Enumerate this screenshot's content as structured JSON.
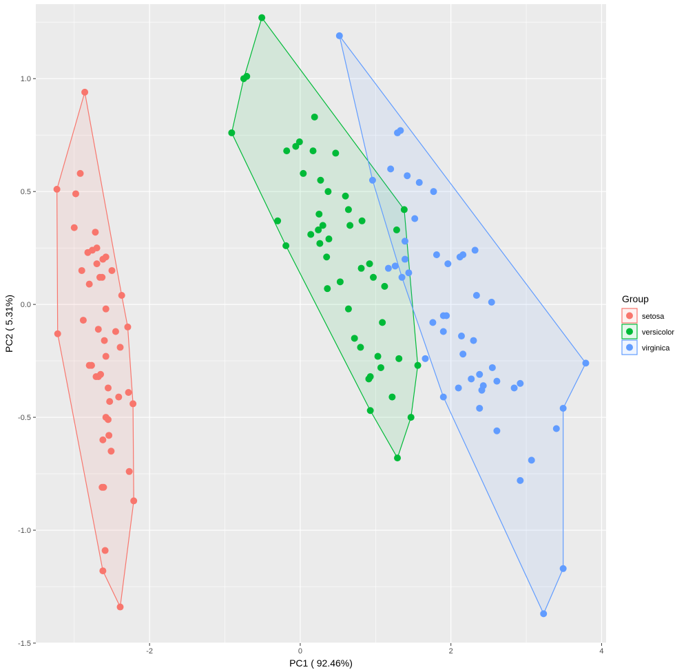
{
  "chart_data": {
    "type": "scatter",
    "xlabel": "PC1 ( 92.46%)",
    "ylabel": "PC2 ( 5.31%)",
    "xlim": [
      -3.51,
      4.06
    ],
    "ylim": [
      -1.5,
      1.33
    ],
    "x_ticks": [
      -2,
      0,
      2,
      4
    ],
    "y_ticks": [
      -1.5,
      -1.0,
      -0.5,
      0.0,
      0.5,
      1.0
    ],
    "x_tick_labels": [
      "-2",
      "0",
      "2",
      "4"
    ],
    "y_tick_labels": [
      "-1.5",
      "-1.0",
      "-0.5",
      "0.0",
      "0.5",
      "1.0"
    ],
    "grid": true,
    "legend_position": "right",
    "legend": {
      "title": "Group",
      "entries": [
        "setosa",
        "versicolor",
        "virginica"
      ]
    },
    "series": [
      {
        "name": "setosa",
        "color": "#F8766D",
        "hull": [
          [
            -2.86,
            0.94
          ],
          [
            -3.23,
            0.51
          ],
          [
            -3.22,
            -0.13
          ],
          [
            -2.62,
            -1.18
          ],
          [
            -2.39,
            -1.34
          ],
          [
            -2.21,
            -0.87
          ],
          [
            -2.22,
            -0.44
          ],
          [
            -2.29,
            -0.1
          ],
          [
            -2.37,
            0.04
          ]
        ],
        "points": [
          [
            -2.86,
            0.94
          ],
          [
            -3.23,
            0.51
          ],
          [
            -3.22,
            -0.13
          ],
          [
            -2.62,
            -1.18
          ],
          [
            -2.39,
            -1.34
          ],
          [
            -2.21,
            -0.87
          ],
          [
            -2.22,
            -0.44
          ],
          [
            -2.29,
            -0.1
          ],
          [
            -2.37,
            0.04
          ],
          [
            -2.92,
            0.58
          ],
          [
            -2.98,
            0.49
          ],
          [
            -3.0,
            0.34
          ],
          [
            -2.72,
            0.32
          ],
          [
            -2.82,
            0.23
          ],
          [
            -2.76,
            0.24
          ],
          [
            -2.7,
            0.25
          ],
          [
            -2.62,
            0.2
          ],
          [
            -2.58,
            0.21
          ],
          [
            -2.7,
            0.18
          ],
          [
            -2.9,
            0.15
          ],
          [
            -2.5,
            0.15
          ],
          [
            -2.63,
            0.12
          ],
          [
            -2.66,
            0.12
          ],
          [
            -2.8,
            0.09
          ],
          [
            -2.58,
            -0.02
          ],
          [
            -2.88,
            -0.07
          ],
          [
            -2.68,
            -0.11
          ],
          [
            -2.45,
            -0.12
          ],
          [
            -2.6,
            -0.16
          ],
          [
            -2.39,
            -0.19
          ],
          [
            -2.58,
            -0.23
          ],
          [
            -2.8,
            -0.27
          ],
          [
            -2.77,
            -0.27
          ],
          [
            -2.65,
            -0.31
          ],
          [
            -2.68,
            -0.32
          ],
          [
            -2.71,
            -0.32
          ],
          [
            -2.55,
            -0.37
          ],
          [
            -2.28,
            -0.39
          ],
          [
            -2.41,
            -0.41
          ],
          [
            -2.53,
            -0.43
          ],
          [
            -2.55,
            -0.51
          ],
          [
            -2.58,
            -0.5
          ],
          [
            -2.54,
            -0.58
          ],
          [
            -2.62,
            -0.6
          ],
          [
            -2.51,
            -0.65
          ],
          [
            -2.27,
            -0.74
          ],
          [
            -2.63,
            -0.81
          ],
          [
            -2.61,
            -0.81
          ],
          [
            -2.59,
            -1.09
          ]
        ]
      },
      {
        "name": "versicolor",
        "color": "#00BA38",
        "hull": [
          [
            -0.51,
            1.27
          ],
          [
            1.38,
            0.42
          ],
          [
            1.56,
            -0.27
          ],
          [
            1.47,
            -0.5
          ],
          [
            1.29,
            -0.68
          ],
          [
            0.93,
            -0.47
          ],
          [
            -0.19,
            0.26
          ],
          [
            -0.91,
            0.76
          ],
          [
            -0.75,
            1.0
          ]
        ],
        "points": [
          [
            -0.51,
            1.27
          ],
          [
            1.38,
            0.42
          ],
          [
            1.56,
            -0.27
          ],
          [
            1.47,
            -0.5
          ],
          [
            1.29,
            -0.68
          ],
          [
            0.93,
            -0.47
          ],
          [
            -0.19,
            0.26
          ],
          [
            -0.91,
            0.76
          ],
          [
            -0.75,
            1.0
          ],
          [
            -0.71,
            1.01
          ],
          [
            0.19,
            0.83
          ],
          [
            -0.18,
            0.68
          ],
          [
            -0.06,
            0.7
          ],
          [
            -0.01,
            0.72
          ],
          [
            0.17,
            0.68
          ],
          [
            0.47,
            0.67
          ],
          [
            0.04,
            0.58
          ],
          [
            0.27,
            0.55
          ],
          [
            0.37,
            0.5
          ],
          [
            0.6,
            0.48
          ],
          [
            0.25,
            0.4
          ],
          [
            0.64,
            0.42
          ],
          [
            0.14,
            0.31
          ],
          [
            0.24,
            0.33
          ],
          [
            0.3,
            0.35
          ],
          [
            0.66,
            0.35
          ],
          [
            0.82,
            0.37
          ],
          [
            -0.3,
            0.37
          ],
          [
            0.38,
            0.29
          ],
          [
            0.26,
            0.27
          ],
          [
            0.35,
            0.21
          ],
          [
            1.28,
            0.33
          ],
          [
            0.81,
            0.16
          ],
          [
            0.92,
            0.18
          ],
          [
            0.97,
            0.12
          ],
          [
            0.53,
            0.1
          ],
          [
            0.36,
            0.07
          ],
          [
            1.12,
            0.08
          ],
          [
            0.64,
            -0.02
          ],
          [
            1.09,
            -0.08
          ],
          [
            0.72,
            -0.15
          ],
          [
            0.8,
            -0.19
          ],
          [
            1.03,
            -0.23
          ],
          [
            1.07,
            -0.28
          ],
          [
            1.31,
            -0.24
          ],
          [
            0.93,
            -0.32
          ],
          [
            0.91,
            -0.33
          ],
          [
            1.22,
            -0.41
          ]
        ]
      },
      {
        "name": "virginica",
        "color": "#619CFF",
        "hull": [
          [
            0.52,
            1.19
          ],
          [
            3.79,
            -0.26
          ],
          [
            3.49,
            -0.46
          ],
          [
            3.49,
            -1.17
          ],
          [
            3.23,
            -1.37
          ],
          [
            1.9,
            -0.41
          ],
          [
            1.35,
            0.12
          ],
          [
            0.96,
            0.55
          ]
        ],
        "points": [
          [
            0.52,
            1.19
          ],
          [
            3.79,
            -0.26
          ],
          [
            3.49,
            -0.46
          ],
          [
            3.49,
            -1.17
          ],
          [
            3.23,
            -1.37
          ],
          [
            1.9,
            -0.41
          ],
          [
            1.35,
            0.12
          ],
          [
            0.96,
            0.55
          ],
          [
            1.33,
            0.77
          ],
          [
            1.29,
            0.76
          ],
          [
            1.2,
            0.6
          ],
          [
            1.42,
            0.57
          ],
          [
            1.58,
            0.54
          ],
          [
            1.77,
            0.5
          ],
          [
            1.52,
            0.38
          ],
          [
            1.39,
            0.28
          ],
          [
            2.32,
            0.24
          ],
          [
            1.81,
            0.22
          ],
          [
            2.12,
            0.21
          ],
          [
            2.16,
            0.22
          ],
          [
            1.39,
            0.2
          ],
          [
            1.96,
            0.18
          ],
          [
            1.26,
            0.17
          ],
          [
            1.17,
            0.16
          ],
          [
            1.44,
            0.14
          ],
          [
            2.34,
            0.04
          ],
          [
            2.54,
            0.01
          ],
          [
            1.9,
            -0.05
          ],
          [
            1.94,
            -0.05
          ],
          [
            1.76,
            -0.08
          ],
          [
            1.9,
            -0.12
          ],
          [
            2.14,
            -0.14
          ],
          [
            2.3,
            -0.16
          ],
          [
            2.16,
            -0.22
          ],
          [
            1.66,
            -0.24
          ],
          [
            2.55,
            -0.28
          ],
          [
            2.38,
            -0.31
          ],
          [
            2.27,
            -0.33
          ],
          [
            2.61,
            -0.34
          ],
          [
            2.43,
            -0.36
          ],
          [
            2.92,
            -0.35
          ],
          [
            2.84,
            -0.37
          ],
          [
            2.1,
            -0.37
          ],
          [
            2.41,
            -0.38
          ],
          [
            2.38,
            -0.46
          ],
          [
            2.61,
            -0.56
          ],
          [
            3.4,
            -0.55
          ],
          [
            3.07,
            -0.69
          ],
          [
            2.92,
            -0.78
          ]
        ]
      }
    ]
  }
}
